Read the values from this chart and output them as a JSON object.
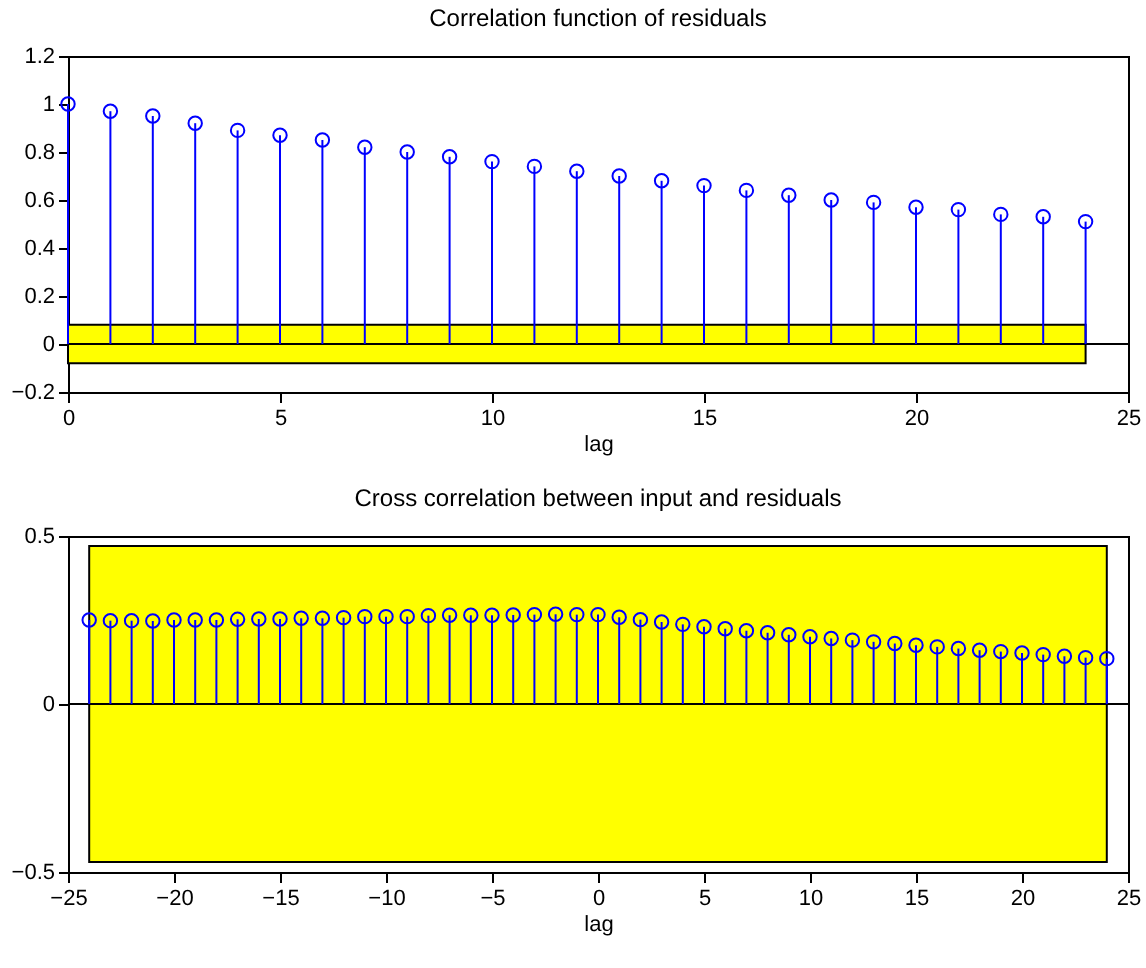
{
  "chart_data": [
    {
      "type": "lollipop",
      "title": "Correlation function of residuals",
      "xlabel": "lag",
      "x": [
        0,
        1,
        2,
        3,
        4,
        5,
        6,
        7,
        8,
        9,
        10,
        11,
        12,
        13,
        14,
        15,
        16,
        17,
        18,
        19,
        20,
        21,
        22,
        23,
        24
      ],
      "series": [
        {
          "color": "#0000ff",
          "values": [
            1.0,
            0.97,
            0.95,
            0.92,
            0.89,
            0.87,
            0.85,
            0.82,
            0.8,
            0.78,
            0.76,
            0.74,
            0.72,
            0.7,
            0.68,
            0.66,
            0.64,
            0.62,
            0.6,
            0.59,
            0.57,
            0.56,
            0.54,
            0.53,
            0.51
          ]
        }
      ],
      "bands": [
        {
          "axis": "y",
          "from": -0.08,
          "to": 0.08,
          "color": "#ffff00"
        }
      ],
      "ref_lines": [
        {
          "axis": "y",
          "value": 0,
          "color": "#000000"
        }
      ],
      "xlim": [
        0,
        25
      ],
      "xticks": [
        0,
        5,
        10,
        15,
        20,
        25
      ],
      "ylim": [
        -0.2,
        1.2
      ],
      "yticks": [
        -0.2,
        0,
        0.2,
        0.4,
        0.6,
        0.8,
        1,
        1.2
      ],
      "marker": "circle",
      "grid": false
    },
    {
      "type": "lollipop",
      "title": "Cross correlation between input and residuals",
      "xlabel": "lag",
      "x": [
        -24,
        -23,
        -22,
        -21,
        -20,
        -19,
        -18,
        -17,
        -16,
        -15,
        -14,
        -13,
        -12,
        -11,
        -10,
        -9,
        -8,
        -7,
        -6,
        -5,
        -4,
        -3,
        -2,
        -1,
        0,
        1,
        2,
        3,
        4,
        5,
        6,
        7,
        8,
        9,
        10,
        11,
        12,
        13,
        14,
        15,
        16,
        17,
        18,
        19,
        20,
        21,
        22,
        23,
        24
      ],
      "series": [
        {
          "color": "#0000ff",
          "values": [
            0.25,
            0.248,
            0.248,
            0.247,
            0.25,
            0.25,
            0.25,
            0.252,
            0.253,
            0.253,
            0.255,
            0.255,
            0.257,
            0.26,
            0.26,
            0.26,
            0.263,
            0.264,
            0.264,
            0.264,
            0.265,
            0.266,
            0.267,
            0.266,
            0.266,
            0.258,
            0.251,
            0.244,
            0.237,
            0.23,
            0.224,
            0.218,
            0.212,
            0.206,
            0.2,
            0.195,
            0.19,
            0.185,
            0.18,
            0.175,
            0.17,
            0.165,
            0.16,
            0.156,
            0.152,
            0.147,
            0.142,
            0.138,
            0.135
          ]
        }
      ],
      "bands": [
        {
          "axis": "y",
          "from": -0.47,
          "to": 0.47,
          "color": "#ffff00"
        }
      ],
      "ref_lines": [
        {
          "axis": "y",
          "value": 0,
          "color": "#000000"
        }
      ],
      "xlim": [
        -25,
        25
      ],
      "xticks": [
        -25,
        -20,
        -15,
        -10,
        -5,
        0,
        5,
        10,
        15,
        20,
        25
      ],
      "ylim": [
        -0.5,
        0.5
      ],
      "yticks": [
        -0.5,
        0,
        0.5
      ],
      "marker": "circle",
      "grid": false
    }
  ]
}
